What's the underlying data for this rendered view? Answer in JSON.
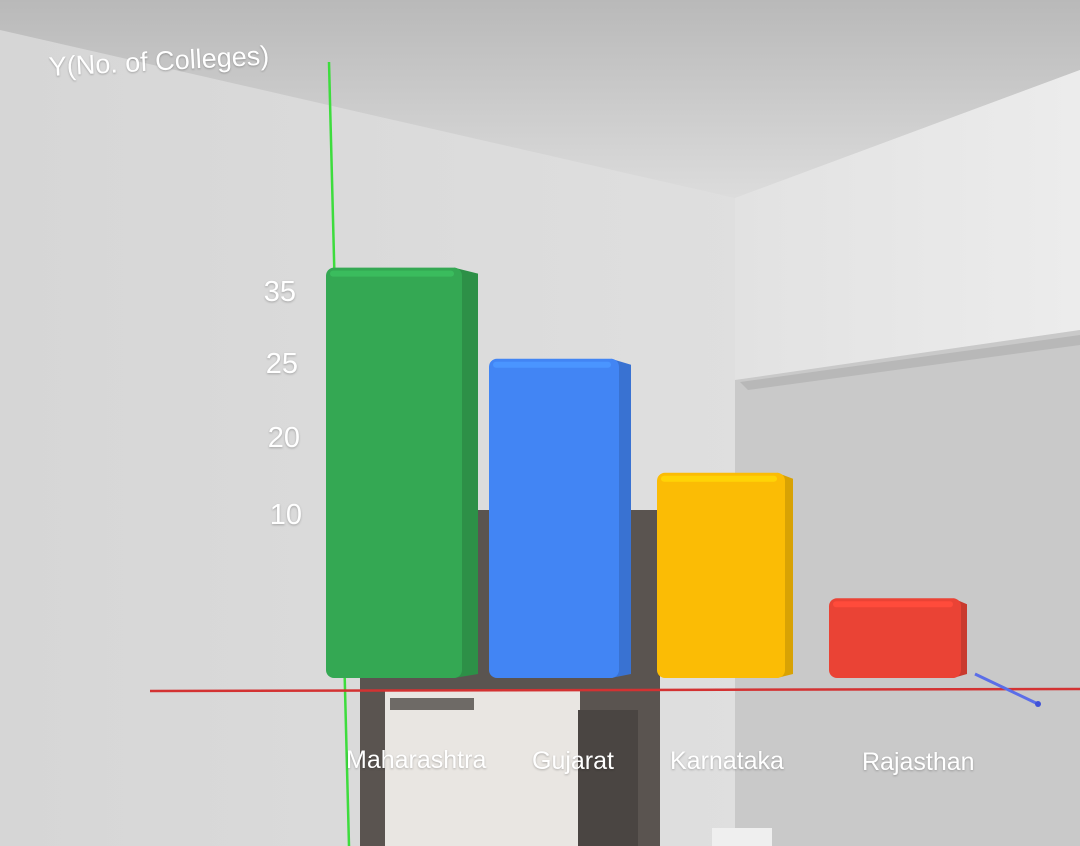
{
  "chart_data": {
    "type": "bar",
    "ylabel": "Y(No. of Colleges)",
    "categories": [
      "Maharashtra",
      "Gujarat",
      "Karnataka",
      "Rajasthan"
    ],
    "values": [
      36,
      28,
      18,
      7
    ],
    "ytick_labels": [
      "35",
      "25",
      "20",
      "10"
    ],
    "colors": [
      "#34a853",
      "#4285f4",
      "#fbbc05",
      "#ea4335"
    ],
    "axis_colors": {
      "y_axis": "#3ddc3d",
      "x_axis": "#d33232"
    }
  }
}
